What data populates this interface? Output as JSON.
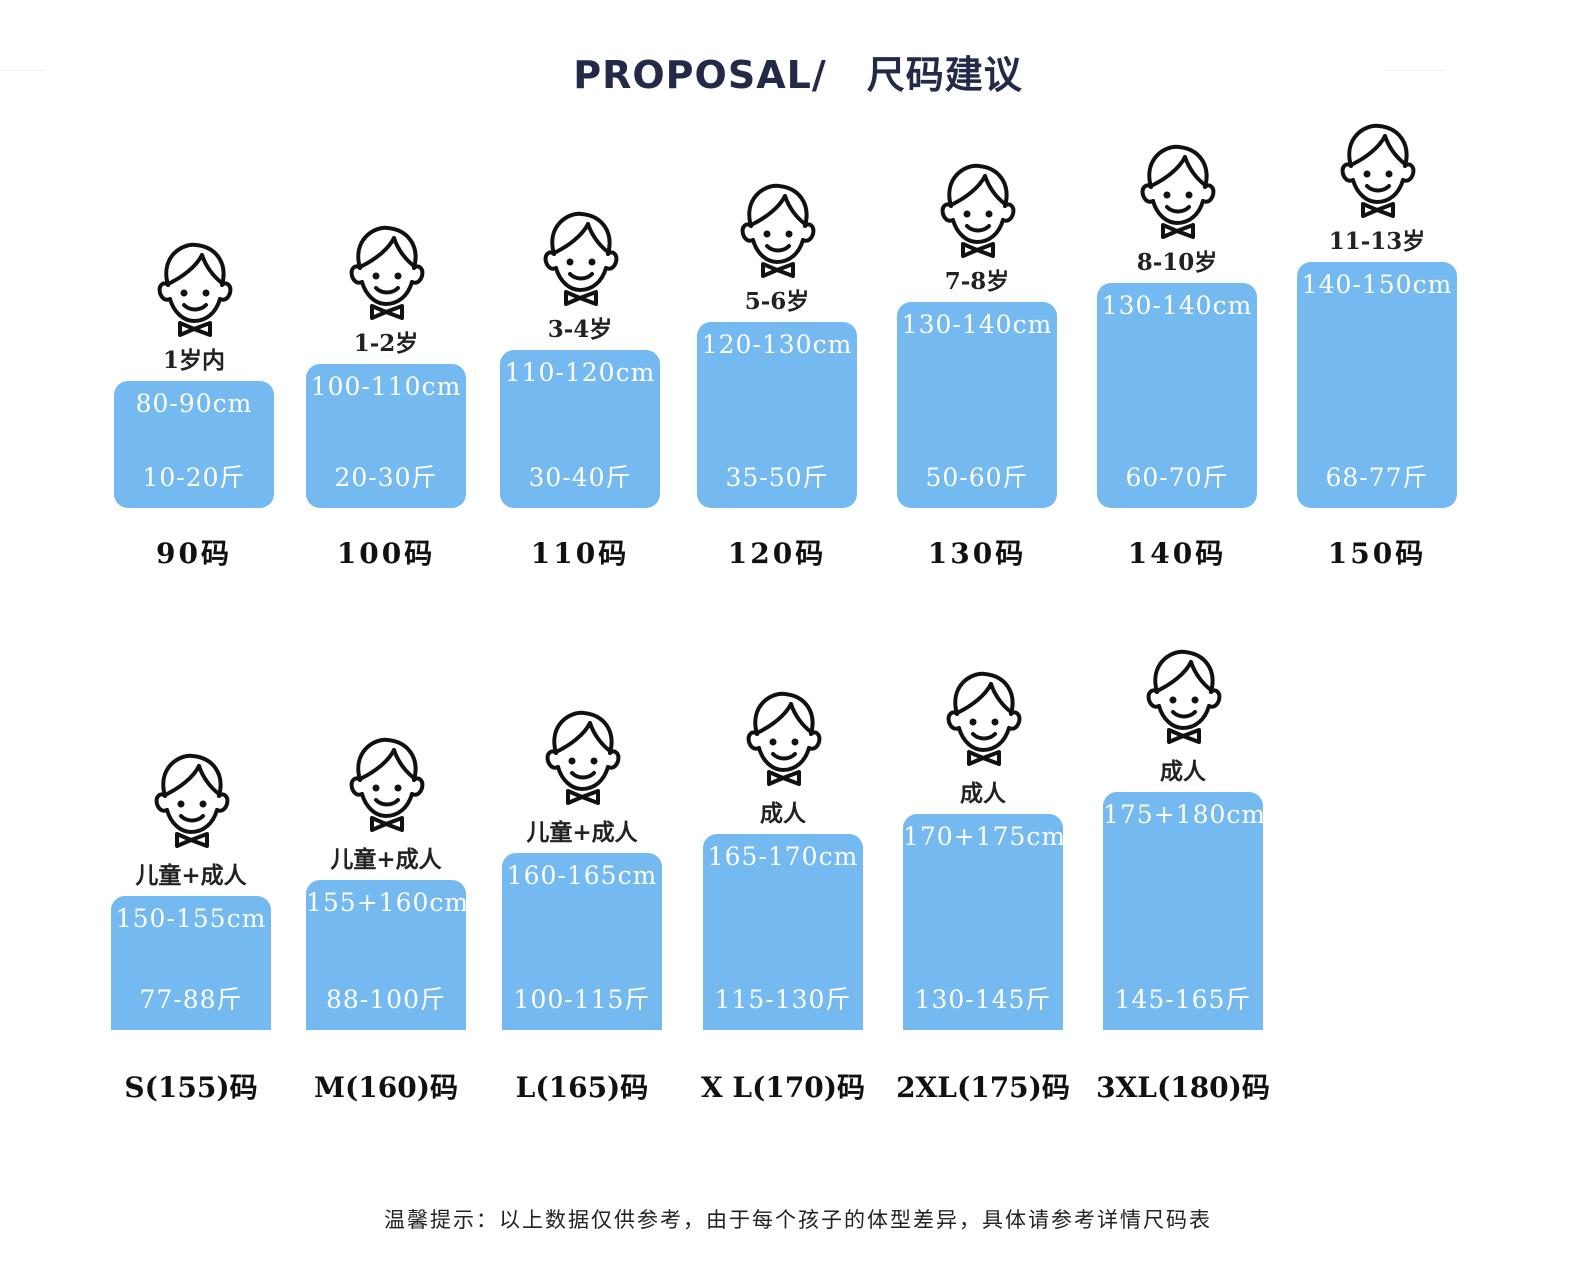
{
  "header": {
    "title_en": "PROPOSAL/",
    "title_cn": "尺码建议"
  },
  "row1": [
    {
      "age": "1岁内",
      "height": "80-90cm",
      "weight": "10-20斤",
      "size": "90码"
    },
    {
      "age": "1-2岁",
      "height": "100-110cm",
      "weight": "20-30斤",
      "size": "100码"
    },
    {
      "age": "3-4岁",
      "height": "110-120cm",
      "weight": "30-40斤",
      "size": "110码"
    },
    {
      "age": "5-6岁",
      "height": "120-130cm",
      "weight": "35-50斤",
      "size": "120码"
    },
    {
      "age": "7-8岁",
      "height": "130-140cm",
      "weight": "50-60斤",
      "size": "130码"
    },
    {
      "age": "8-10岁",
      "height": "130-140cm",
      "weight": "60-70斤",
      "size": "140码"
    },
    {
      "age": "11-13岁",
      "height": "140-150cm",
      "weight": "68-77斤",
      "size": "150码"
    }
  ],
  "row2": [
    {
      "age": "儿童+成人",
      "height": "150-155cm",
      "weight": "77-88斤",
      "size": "S(155)码"
    },
    {
      "age": "儿童+成人",
      "height": "155+160cm",
      "weight": "88-100斤",
      "size": "M(160)码"
    },
    {
      "age": "儿童+成人",
      "height": "160-165cm",
      "weight": "100-115斤",
      "size": "L(165)码"
    },
    {
      "age": "成人",
      "height": "165-170cm",
      "weight": "115-130斤",
      "size": "X L(170)码"
    },
    {
      "age": "成人",
      "height": "170+175cm",
      "weight": "130-145斤",
      "size": "2XL(175)码"
    },
    {
      "age": "成人",
      "height": "175+180cm",
      "weight": "145-165斤",
      "size": "3XL(180)码"
    }
  ],
  "footer": {
    "tip": "温馨提示：以上数据仅供参考，由于每个孩子的体型差异，具体请参考详情尺码表"
  },
  "colors": {
    "box": "#74b9ef",
    "title": "#232a47"
  }
}
